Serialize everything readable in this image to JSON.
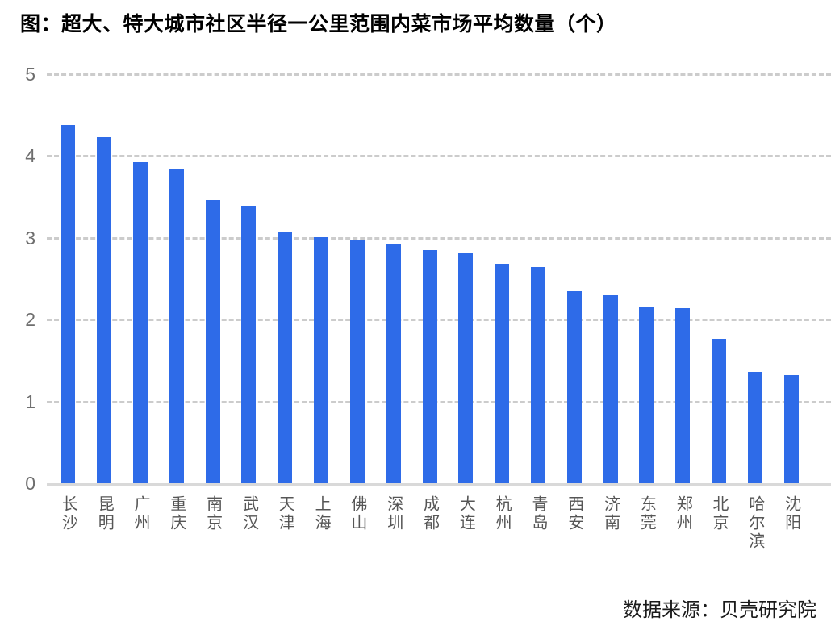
{
  "title": "图：超大、特大城市社区半径一公里范围内菜市场平均数量（个）",
  "source": "数据来源：贝壳研究院",
  "colors": {
    "bar": "#2e6be8",
    "gridline": "#cccccc",
    "baseline": "#d9d9d9",
    "axis_tick_text": "#6e6e6e",
    "category_text": "#565656",
    "title_text": "#000000"
  },
  "chart_data": {
    "type": "bar",
    "title": "图：超大、特大城市社区半径一公里范围内菜市场平均数量（个）",
    "categories": [
      "长沙",
      "昆明",
      "广州",
      "重庆",
      "南京",
      "武汉",
      "天津",
      "上海",
      "佛山",
      "深圳",
      "成都",
      "大连",
      "杭州",
      "青岛",
      "西安",
      "济南",
      "东莞",
      "郑州",
      "北京",
      "哈尔滨",
      "沈阳"
    ],
    "values": [
      4.38,
      4.23,
      3.93,
      3.84,
      3.46,
      3.39,
      3.07,
      3.01,
      2.97,
      2.93,
      2.85,
      2.81,
      2.68,
      2.64,
      2.35,
      2.3,
      2.16,
      2.14,
      1.77,
      1.36,
      1.32
    ],
    "xlabel": "",
    "ylabel": "",
    "ylim": [
      0,
      5
    ],
    "y_ticks": [
      0,
      1,
      2,
      3,
      4,
      5
    ],
    "grid": "horizontal-dashed",
    "legend": "none",
    "source": "数据来源：贝壳研究院"
  }
}
